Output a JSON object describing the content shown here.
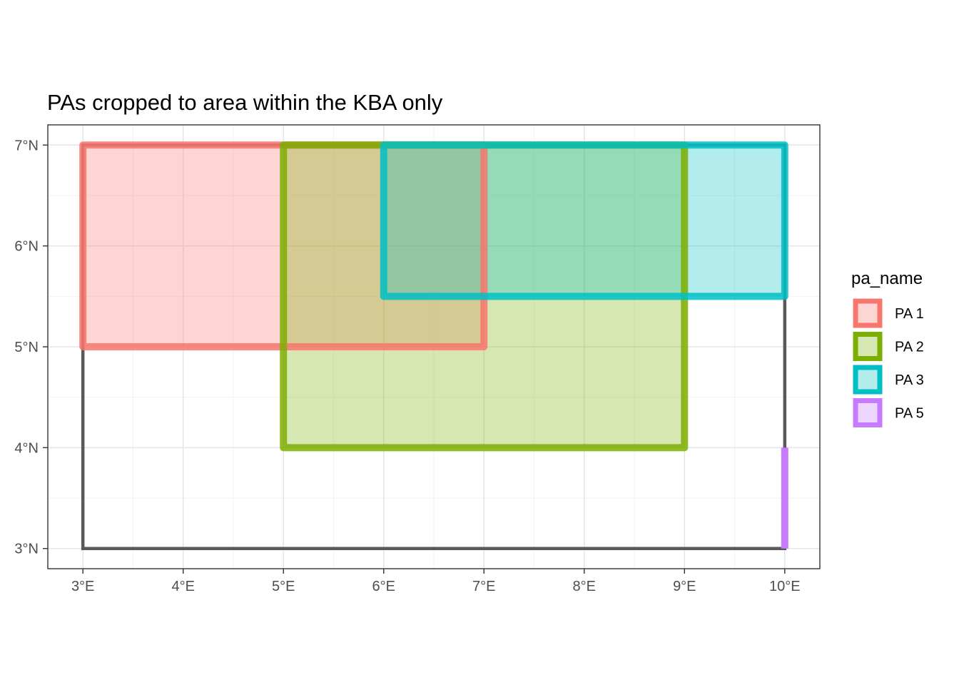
{
  "chart_data": {
    "type": "map",
    "title": "PAs cropped to area within the KBA only",
    "xlabel": "",
    "ylabel": "",
    "xlim": [
      2.65,
      10.35
    ],
    "ylim": [
      2.8,
      7.2
    ],
    "grid": true,
    "x_ticks": [
      {
        "value": 3,
        "label": "3°E"
      },
      {
        "value": 4,
        "label": "4°E"
      },
      {
        "value": 5,
        "label": "5°E"
      },
      {
        "value": 6,
        "label": "6°E"
      },
      {
        "value": 7,
        "label": "7°E"
      },
      {
        "value": 8,
        "label": "8°E"
      },
      {
        "value": 9,
        "label": "9°E"
      },
      {
        "value": 10,
        "label": "10°E"
      }
    ],
    "y_ticks": [
      {
        "value": 3,
        "label": "3°N"
      },
      {
        "value": 4,
        "label": "4°N"
      },
      {
        "value": 5,
        "label": "5°N"
      },
      {
        "value": 6,
        "label": "6°N"
      },
      {
        "value": 7,
        "label": "7°N"
      }
    ],
    "kba_outline": {
      "xmin": 3,
      "xmax": 10,
      "ymin": 3,
      "ymax": 7,
      "color": "#595959"
    },
    "legend": {
      "title": "pa_name",
      "position": "right"
    },
    "series": [
      {
        "name": "PA 1",
        "color": "#F8766D",
        "xmin": 3,
        "xmax": 7,
        "ymin": 5,
        "ymax": 7
      },
      {
        "name": "PA 2",
        "color": "#7CAE00",
        "xmin": 5,
        "xmax": 9,
        "ymin": 4,
        "ymax": 7
      },
      {
        "name": "PA 3",
        "color": "#00BFC4",
        "xmin": 6,
        "xmax": 10,
        "ymin": 5.5,
        "ymax": 7
      },
      {
        "name": "PA 5",
        "color": "#C77CFF",
        "xmin": 10,
        "xmax": 10,
        "ymin": 3,
        "ymax": 4
      }
    ]
  }
}
